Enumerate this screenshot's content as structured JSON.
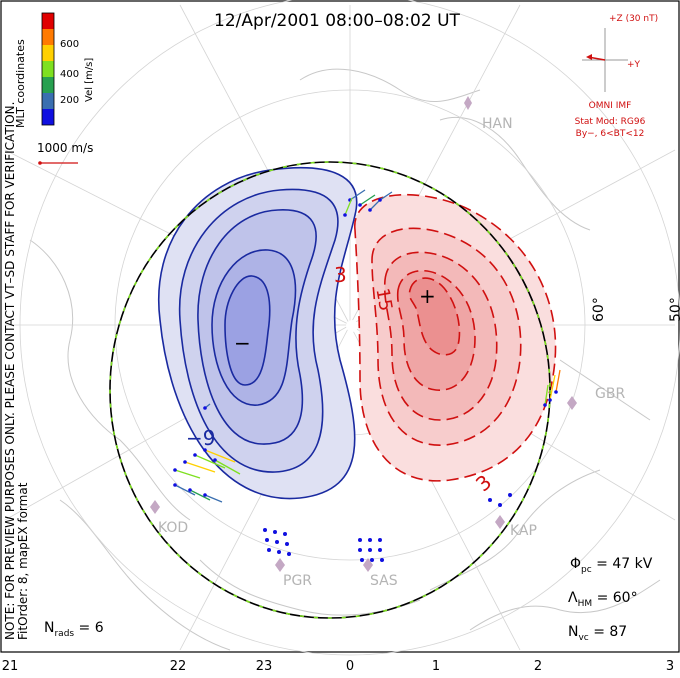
{
  "title": "12/Apr/2001 08:00–08:02 UT",
  "colorbar": {
    "label": "Vel [m/s]",
    "ticks": [
      "600",
      "400",
      "200"
    ],
    "colors": [
      "#e00000",
      "#ff7a00",
      "#ffd000",
      "#7ee020",
      "#27a050",
      "#3a6fb0",
      "#1010e0"
    ]
  },
  "side_label": "MLT coordinates",
  "scale_vector_label": "1000 m/s",
  "imf": {
    "bz_label": "+Z (30 nT)",
    "by_label": "+Y",
    "source": "OMNI IMF",
    "model_line1": "Stat Mod: RG96",
    "model_line2": "By−, 6<BT<12"
  },
  "note": "NOTE: FOR PREVIEW PURPOSES ONLY. PLEASE CONTACT VT–SD STAFF FOR VERIFICATION.",
  "fit_order": "FitOrder: 8, mapEX format",
  "contours": {
    "neg_color": "#1a2aa0",
    "pos_color": "#d01010",
    "label_neg": "−9",
    "label_pos_a": "3",
    "label_pos_b": "15",
    "label_pos_c": "3",
    "min_marker": "−",
    "max_marker": "+"
  },
  "latitudes": [
    "60°",
    "50°"
  ],
  "radars": [
    "HAN",
    "KOD",
    "PGR",
    "SAS",
    "KAP",
    "GBR"
  ],
  "stats": {
    "phi_pc": "Φ",
    "phi_sub": "pc",
    "phi_value": " = 47 kV",
    "lambda": "Λ",
    "lambda_sub": "HM",
    "lambda_value": " = 60°",
    "nvc": "N",
    "nvc_sub": "vc",
    "nvc_value": " = 87",
    "nrads": "N",
    "nrads_sub": "rads",
    "nrads_value": " = 6"
  },
  "mlt_ticks": [
    "21",
    "22",
    "23",
    "0",
    "1",
    "2",
    "3"
  ]
}
